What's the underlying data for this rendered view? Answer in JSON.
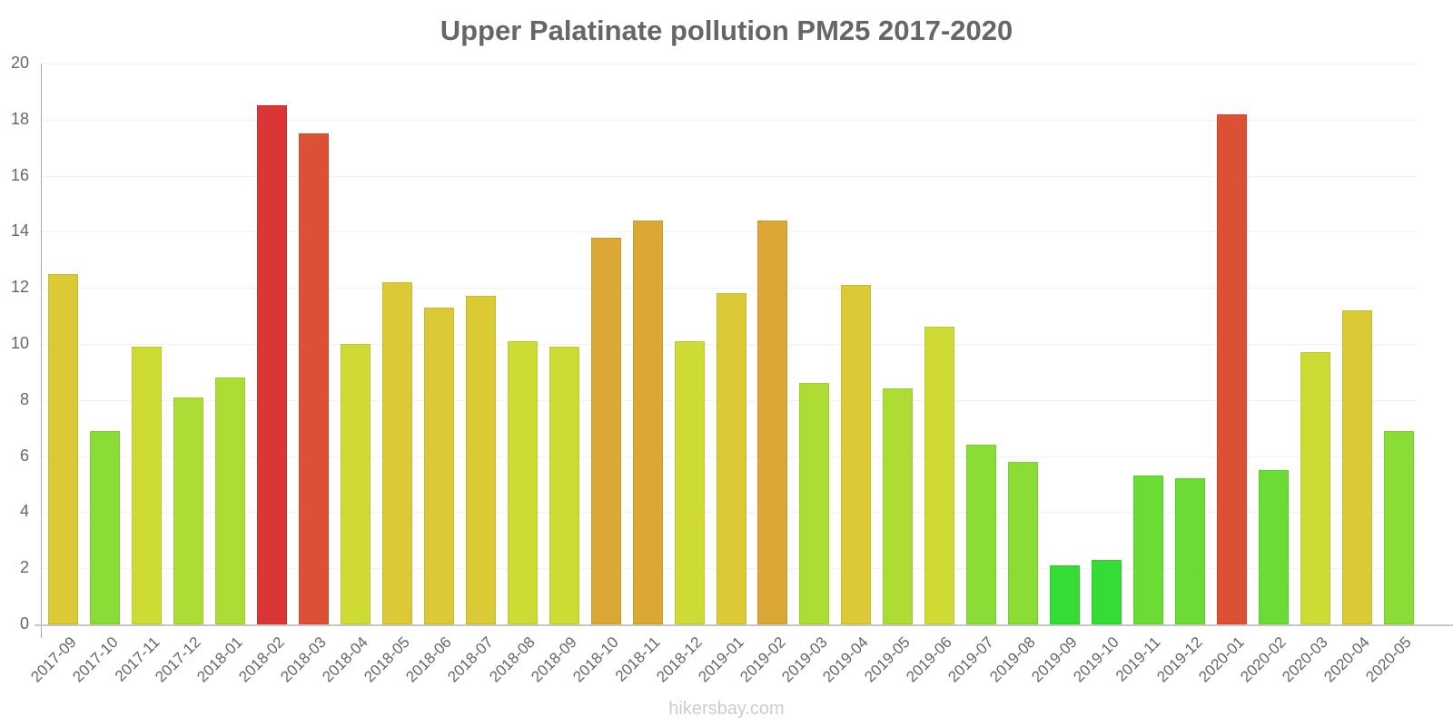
{
  "chart_data": {
    "type": "bar",
    "title": "Upper Palatinate pollution PM25 2017-2020",
    "xlabel": "",
    "ylabel": "",
    "ylim": [
      0,
      20
    ],
    "yticks": [
      0,
      2,
      4,
      6,
      8,
      10,
      12,
      14,
      16,
      18,
      20
    ],
    "grid": true,
    "legend": null,
    "categories": [
      "2017-09",
      "2017-10",
      "2017-11",
      "2017-12",
      "2018-01",
      "2018-02",
      "2018-03",
      "2018-04",
      "2018-05",
      "2018-06",
      "2018-07",
      "2018-08",
      "2018-09",
      "2018-10",
      "2018-11",
      "2018-12",
      "2019-01",
      "2019-02",
      "2019-03",
      "2019-04",
      "2019-05",
      "2019-06",
      "2019-07",
      "2019-08",
      "2019-09",
      "2019-10",
      "2019-11",
      "2019-12",
      "2020-01",
      "2020-02",
      "2020-03",
      "2020-04",
      "2020-05"
    ],
    "values": [
      12.5,
      6.9,
      9.9,
      8.1,
      8.8,
      18.5,
      17.5,
      10.0,
      12.2,
      11.3,
      11.7,
      10.1,
      9.9,
      13.8,
      14.4,
      10.1,
      11.8,
      14.4,
      8.6,
      12.1,
      8.4,
      10.6,
      6.4,
      5.8,
      2.1,
      2.3,
      5.3,
      5.2,
      18.2,
      5.5,
      9.7,
      11.2,
      6.9
    ],
    "colors": [
      "#DBC935",
      "#8ADC36",
      "#CEDB35",
      "#ADDC35",
      "#ADDC35",
      "#DB3535",
      "#DC5035",
      "#CEDB35",
      "#DBC935",
      "#DBC935",
      "#DBC935",
      "#CEDB35",
      "#CEDB35",
      "#DCA835",
      "#DCA835",
      "#CEDB35",
      "#DBC935",
      "#DCA835",
      "#ADDC35",
      "#DBC935",
      "#ADDC35",
      "#CEDB35",
      "#8ADC36",
      "#8ADC36",
      "#35DC35",
      "#35DC35",
      "#6ADC35",
      "#6ADC35",
      "#DC5035",
      "#6ADC35",
      "#CEDB35",
      "#DBC935",
      "#8ADC36"
    ]
  },
  "watermark": "hikersbay.com"
}
